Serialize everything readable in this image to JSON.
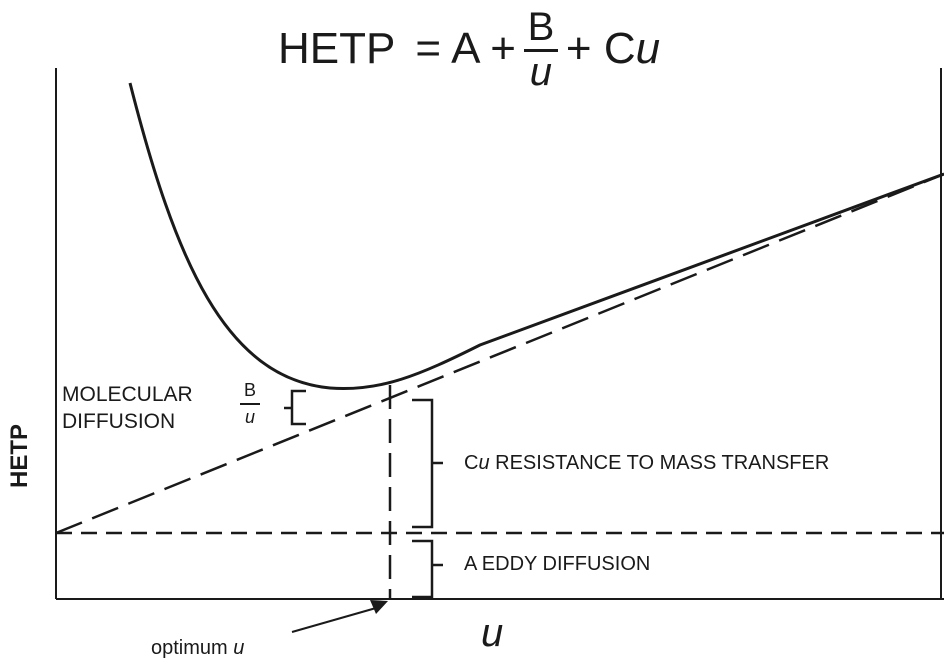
{
  "equation": {
    "lhs": "HETP",
    "equals": "=",
    "term_a": "A +",
    "frac_num": "B",
    "frac_den": "u",
    "term_c": "+ C",
    "term_c_var": "u"
  },
  "y_axis_label": "HETP",
  "x_axis_label": "u",
  "labels": {
    "molecular_diffusion_line1": "MOLECULAR",
    "molecular_diffusion_line2": "DIFFUSION",
    "b_over_u_num": "B",
    "b_over_u_den": "u",
    "cu_prefix": "C",
    "cu_var": "u",
    "cu_text": "RESISTANCE TO MASS TRANSFER",
    "eddy": "A EDDY DIFFUSION",
    "optimum_prefix": "optimum",
    "optimum_var": "u"
  },
  "colors": {
    "ink": "#1a1a1a",
    "background": "#ffffff"
  }
}
